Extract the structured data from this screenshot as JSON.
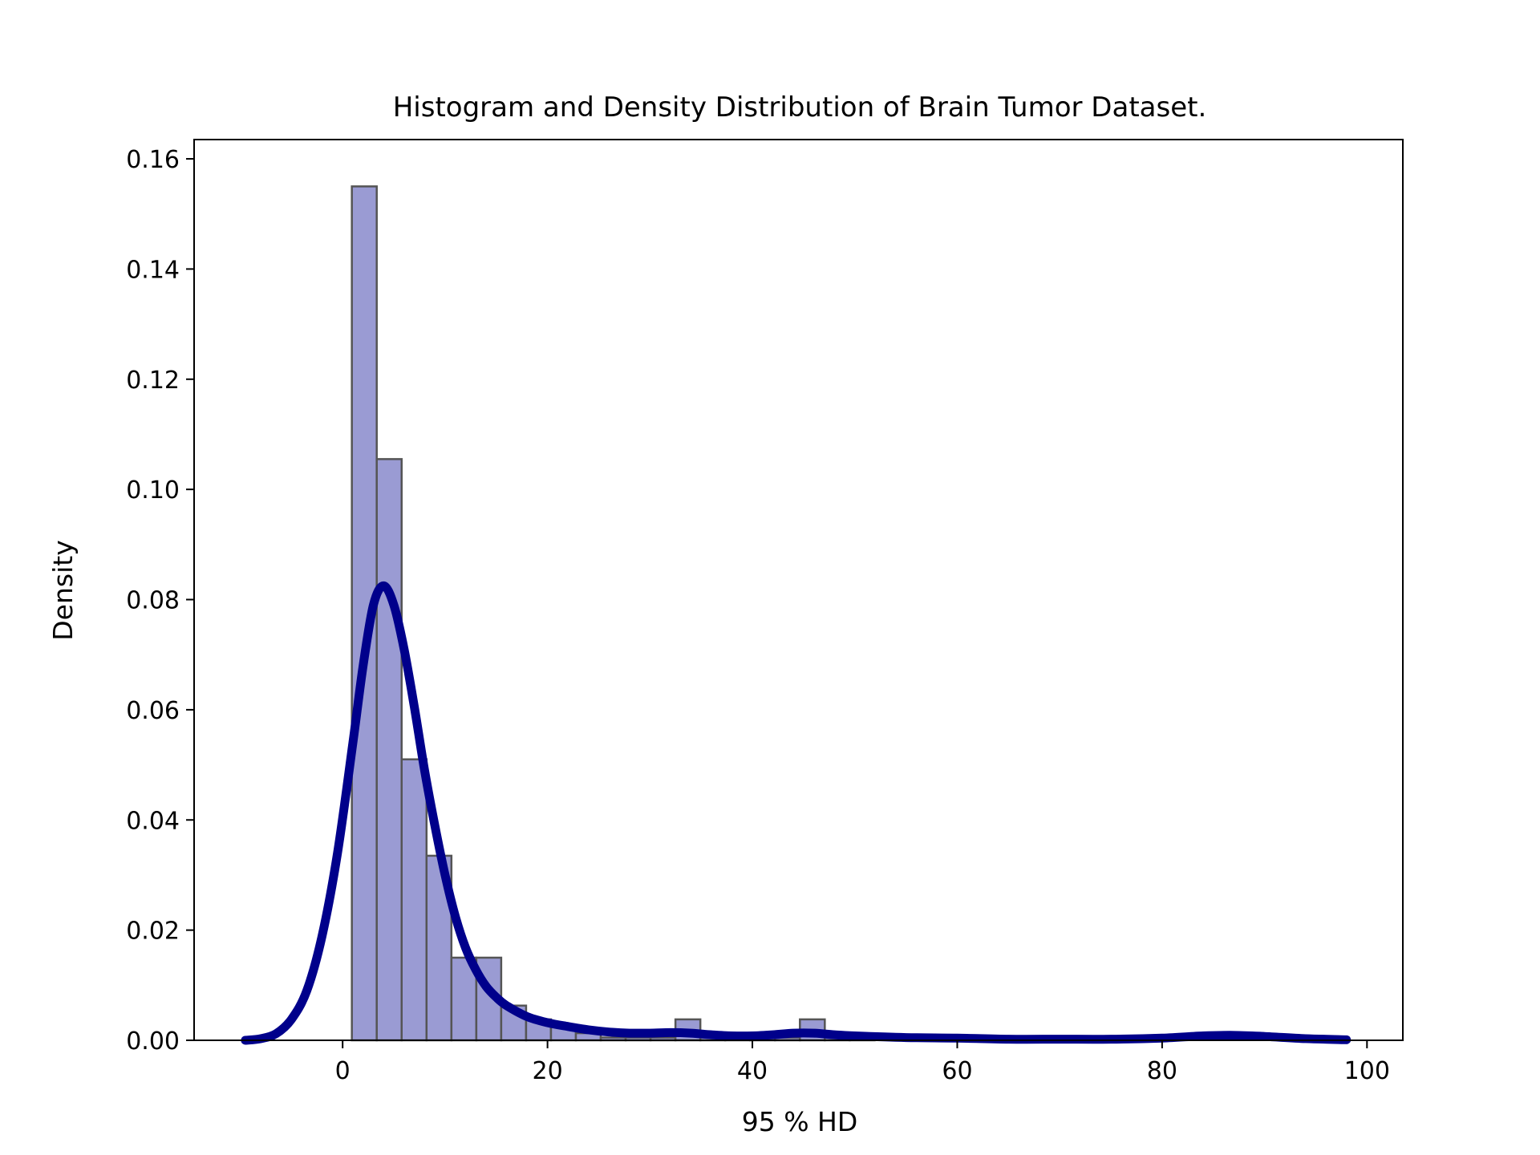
{
  "chart_data": {
    "type": "bar",
    "title": "Histogram and Density Distribution of Brain Tumor Dataset.",
    "xlabel": "95 % HD",
    "ylabel": "Density",
    "xlim": [
      -14.5,
      103.5
    ],
    "ylim": [
      0,
      0.1635
    ],
    "xticks": [
      0,
      20,
      40,
      60,
      80,
      100
    ],
    "xtick_labels": [
      "0",
      "20",
      "40",
      "60",
      "80",
      "100"
    ],
    "yticks": [
      0.0,
      0.02,
      0.04,
      0.06,
      0.08,
      0.1,
      0.12,
      0.14,
      0.16
    ],
    "ytick_labels": [
      "0.00",
      "0.02",
      "0.04",
      "0.06",
      "0.08",
      "0.10",
      "0.12",
      "0.14",
      "0.16"
    ],
    "grid": false,
    "histogram": {
      "bin_start": 0.9,
      "bin_width": 2.43,
      "values": [
        0.155,
        0.1055,
        0.051,
        0.0335,
        0.015,
        0.015,
        0.0063,
        0.0038,
        0.0025,
        0.0013,
        0.0005,
        0.0005,
        0.0005,
        0.0038,
        0.0005,
        0.0005,
        0.0005,
        0.0005,
        0.0038,
        0.0005,
        0.0003
      ],
      "fill_color": "#9a9bd3",
      "edge_color": "#555555"
    },
    "density_curve": {
      "color": "#00008b",
      "x": [
        -9.5,
        -8,
        -6.5,
        -5,
        -3.5,
        -2,
        -0.5,
        1,
        2,
        3,
        4,
        5,
        6,
        7,
        8,
        9,
        10,
        11,
        12,
        13,
        14,
        15,
        16,
        18,
        20,
        22,
        24,
        26,
        28,
        30,
        32,
        34,
        36,
        38,
        40,
        42,
        44,
        46,
        48,
        50,
        55,
        60,
        65,
        70,
        75,
        80,
        84,
        87,
        90,
        94,
        98
      ],
      "y": [
        0.0,
        0.0003,
        0.0012,
        0.0038,
        0.009,
        0.019,
        0.034,
        0.054,
        0.068,
        0.079,
        0.0825,
        0.079,
        0.071,
        0.0605,
        0.049,
        0.039,
        0.03,
        0.0225,
        0.0168,
        0.0128,
        0.0098,
        0.0078,
        0.0063,
        0.0043,
        0.0032,
        0.0025,
        0.0019,
        0.0015,
        0.0013,
        0.0013,
        0.0014,
        0.0013,
        0.001,
        0.0008,
        0.0008,
        0.001,
        0.0013,
        0.0013,
        0.001,
        0.0008,
        0.0005,
        0.0004,
        0.0002,
        0.0002,
        0.0002,
        0.0004,
        0.0008,
        0.0009,
        0.0007,
        0.0003,
        0.0001
      ]
    }
  }
}
